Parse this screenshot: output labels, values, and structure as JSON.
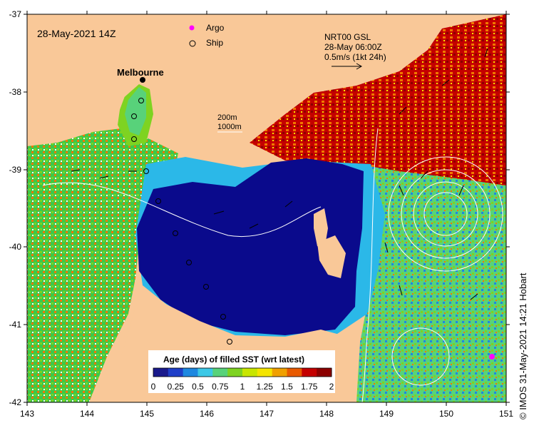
{
  "title": "28-May-2021 14Z",
  "legend": {
    "argo": "Argo",
    "ship": "Ship",
    "argo_color": "#ff00ff",
    "ship_color": "#000000"
  },
  "current_info": {
    "line1": "NRT00 GSL",
    "line2": "28-May 06:00Z",
    "line3": "0.5m/s (1kt 24h)"
  },
  "isobaths": {
    "line1": "200m",
    "line2": "1000m"
  },
  "place": "Melbourne",
  "colorbar": {
    "title": "Age (days) of filled SST (wrt latest)",
    "ticks": [
      "0",
      "0.25",
      "0.5",
      "0.75",
      "1",
      "1.25",
      "1.5",
      "1.75",
      "2"
    ],
    "colors": [
      "#1a1a8c",
      "#1f3fc8",
      "#1e88e0",
      "#3cc8e6",
      "#58d27a",
      "#7ed321",
      "#c8e600",
      "#f5e500",
      "#f0a000",
      "#e85a00",
      "#c40000",
      "#8c0000"
    ]
  },
  "axes": {
    "x_ticks": [
      "143",
      "144",
      "145",
      "146",
      "147",
      "148",
      "149",
      "150",
      "151"
    ],
    "y_ticks": [
      "-37",
      "-38",
      "-39",
      "-40",
      "-41",
      "-42"
    ]
  },
  "credit": "© IMOS 31-May-2021 14:21 Hobart",
  "colors": {
    "land": "#f9c898",
    "deep_blue": "#0a0a8c",
    "cyan": "#2bb8e8",
    "green": "#4cd84a",
    "dark_red": "#a00000",
    "orange": "#f07800"
  }
}
